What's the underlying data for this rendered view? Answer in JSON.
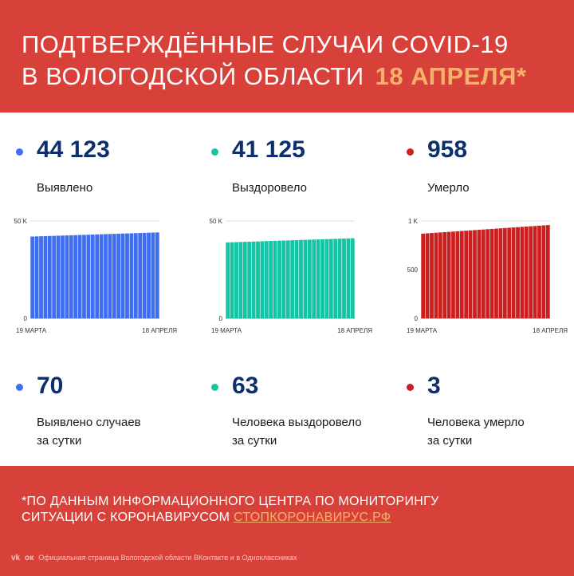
{
  "header": {
    "line1": "ПОДТВЕРЖДЁННЫЕ СЛУЧАИ COVID-19",
    "line2": "В ВОЛОГОДСКОЙ ОБЛАСТИ",
    "date": "18 АПРЕЛЯ*"
  },
  "colors": {
    "red_bg": "#d8403a",
    "blue": "#3f6ef0",
    "green": "#14c4a3",
    "red": "#cc1f1f",
    "number": "#0c2f6e",
    "accent": "#f6b26b"
  },
  "totals": [
    {
      "value": "44 123",
      "label": "Выявлено",
      "color": "#3f6ef0"
    },
    {
      "value": "41 125",
      "label": "Выздоровело",
      "color": "#14c4a3"
    },
    {
      "value": "958",
      "label": "Умерло",
      "color": "#cc1f1f"
    }
  ],
  "daily": [
    {
      "value": "70",
      "label1": "Выявлено случаев",
      "label2": "за сутки",
      "color": "#3f6ef0"
    },
    {
      "value": "63",
      "label1": "Человека выздоровело",
      "label2": "за сутки",
      "color": "#14c4a3"
    },
    {
      "value": "3",
      "label1": "Человека умерло",
      "label2": "за сутки",
      "color": "#cc1f1f"
    }
  ],
  "chart_data": [
    {
      "type": "bar",
      "x_start_label": "19 МАРТА",
      "x_end_label": "18 АПРЕЛЯ",
      "y_ticks": [
        "50 K",
        "0"
      ],
      "ylim": [
        0,
        50000
      ],
      "bar_count": 30,
      "values_start": 42000,
      "values_end": 44123,
      "color": "#3f6ef0"
    },
    {
      "type": "bar",
      "x_start_label": "19 МАРТА",
      "x_end_label": "18 АПРЕЛЯ",
      "y_ticks": [
        "50 K",
        "0"
      ],
      "ylim": [
        0,
        50000
      ],
      "bar_count": 30,
      "values_start": 39000,
      "values_end": 41125,
      "color": "#14c4a3"
    },
    {
      "type": "bar",
      "x_start_label": "19 МАРТА",
      "x_end_label": "18 АПРЕЛЯ",
      "y_ticks": [
        "1 K",
        "500",
        "0"
      ],
      "ylim": [
        0,
        1000
      ],
      "bar_count": 30,
      "values_start": 870,
      "values_end": 958,
      "color": "#cc1f1f"
    }
  ],
  "footer": {
    "source_line1": "*ПО ДАННЫМ ИНФОРМАЦИОННОГО ЦЕНТРА ПО МОНИТОРИНГУ",
    "source_line2": "СИТУАЦИИ С КОРОНАВИРУСОМ",
    "source_link": "СТОПКОРОНАВИРУС.РФ",
    "vk_icon": "vk",
    "ok_icon": "ок",
    "bottom_text": "Официальная страница Вологодской области ВКонтакте и в Одноклассниках"
  }
}
